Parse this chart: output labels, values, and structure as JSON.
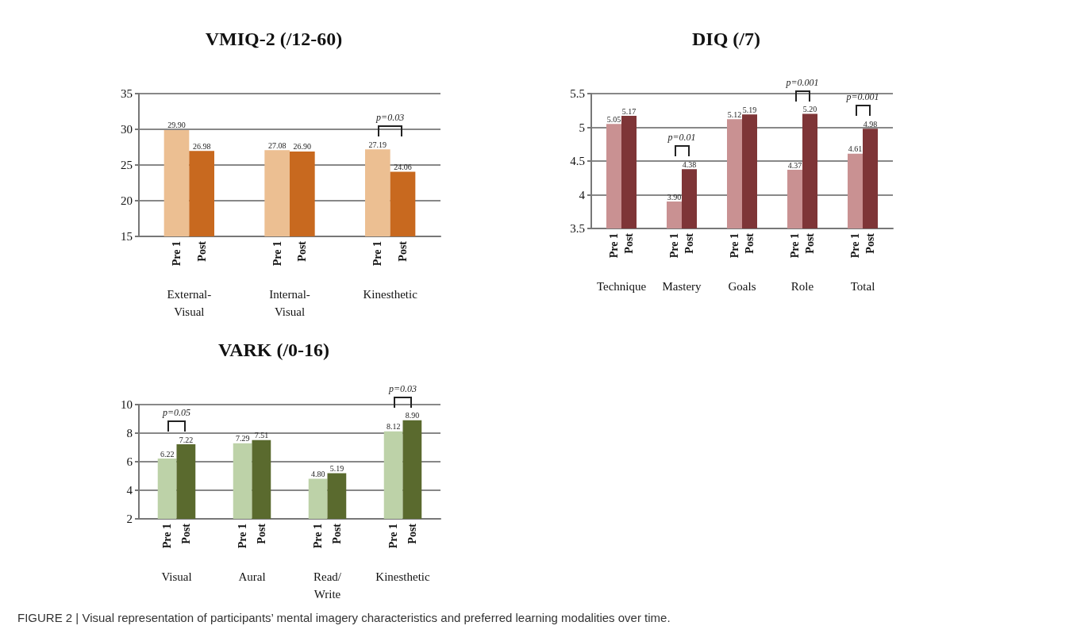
{
  "chart_data": [
    {
      "type": "bar",
      "title": "VMIQ-2 (/12-60)",
      "categories": [
        "External-\nVisual",
        "Internal-\nVisual",
        "Kinesthetic"
      ],
      "series": [
        {
          "name": "Pre 1",
          "color": "#ecbf92",
          "values": [
            29.9,
            27.08,
            27.19
          ],
          "value_labels": [
            "29.90",
            "27.08",
            "27.19"
          ]
        },
        {
          "name": "Post",
          "color": "#c8691f",
          "values": [
            26.98,
            26.9,
            24.06
          ],
          "value_labels": [
            "26.98",
            "26.90",
            "24.06"
          ]
        }
      ],
      "ylim": [
        15,
        35
      ],
      "yticks": [
        15,
        20,
        25,
        30,
        35
      ],
      "grid": "y",
      "legend": false,
      "annotations": [
        {
          "text": "p=0.03",
          "x": "Kinesthetic",
          "y": 27.19
        },
        "FIGURE 2 | Visual representation of participants’ mental imagery characteristics and preferred learning modalities over time."
      ]
    },
    {
      "type": "bar",
      "title": "DIQ (/7)",
      "categories": [
        "Technique",
        "Mastery",
        "Goals",
        "Role",
        "Total"
      ],
      "series": [
        {
          "name": "Pre 1",
          "color": "#c99192",
          "values": [
            5.05,
            3.9,
            5.12,
            4.37,
            4.61
          ],
          "value_labels": [
            "5.05",
            "3.90",
            "5.12",
            "4.37",
            "4.61"
          ]
        },
        {
          "name": "Post",
          "color": "#7e3537",
          "values": [
            5.17,
            4.38,
            5.19,
            5.2,
            4.98
          ],
          "value_labels": [
            "5.17",
            "4.38",
            "5.19",
            "5.20",
            "4.98"
          ]
        }
      ],
      "ylim": [
        3.5,
        5.5
      ],
      "yticks": [
        3.5,
        4,
        4.5,
        5,
        5.5
      ],
      "grid": "y",
      "legend": false,
      "annotations": [
        {
          "text": "p=0.01",
          "x": "Mastery",
          "y": 4.38
        },
        {
          "text": "p=0.001",
          "x": "Role",
          "y": 5.2
        },
        {
          "text": "p=0.001",
          "x": "Total",
          "y": 4.98
        }
      ]
    },
    {
      "type": "bar",
      "title": "VARK (/0-16)",
      "categories": [
        "Visual",
        "Aural",
        "Read/\nWrite",
        "Kinesthetic"
      ],
      "series": [
        {
          "name": "Pre 1",
          "color": "#bdd2a8",
          "values": [
            6.22,
            7.29,
            4.8,
            8.12
          ],
          "value_labels": [
            "6.22",
            "7.29",
            "4.80",
            "8.12"
          ]
        },
        {
          "name": "Post",
          "color": "#5a6a2e",
          "values": [
            7.22,
            7.51,
            5.19,
            8.9
          ],
          "value_labels": [
            "7.22",
            "7.51",
            "5.19",
            "8.90"
          ]
        }
      ],
      "ylim": [
        2,
        10
      ],
      "yticks": [
        2,
        4,
        6,
        8,
        10
      ],
      "grid": "y",
      "legend": false,
      "annotations": [
        {
          "text": "p=0.05",
          "x": "Visual",
          "y": 7.22
        },
        {
          "text": "p=0.03",
          "x": "Kinesthetic",
          "y": 8.9
        }
      ]
    }
  ]
}
